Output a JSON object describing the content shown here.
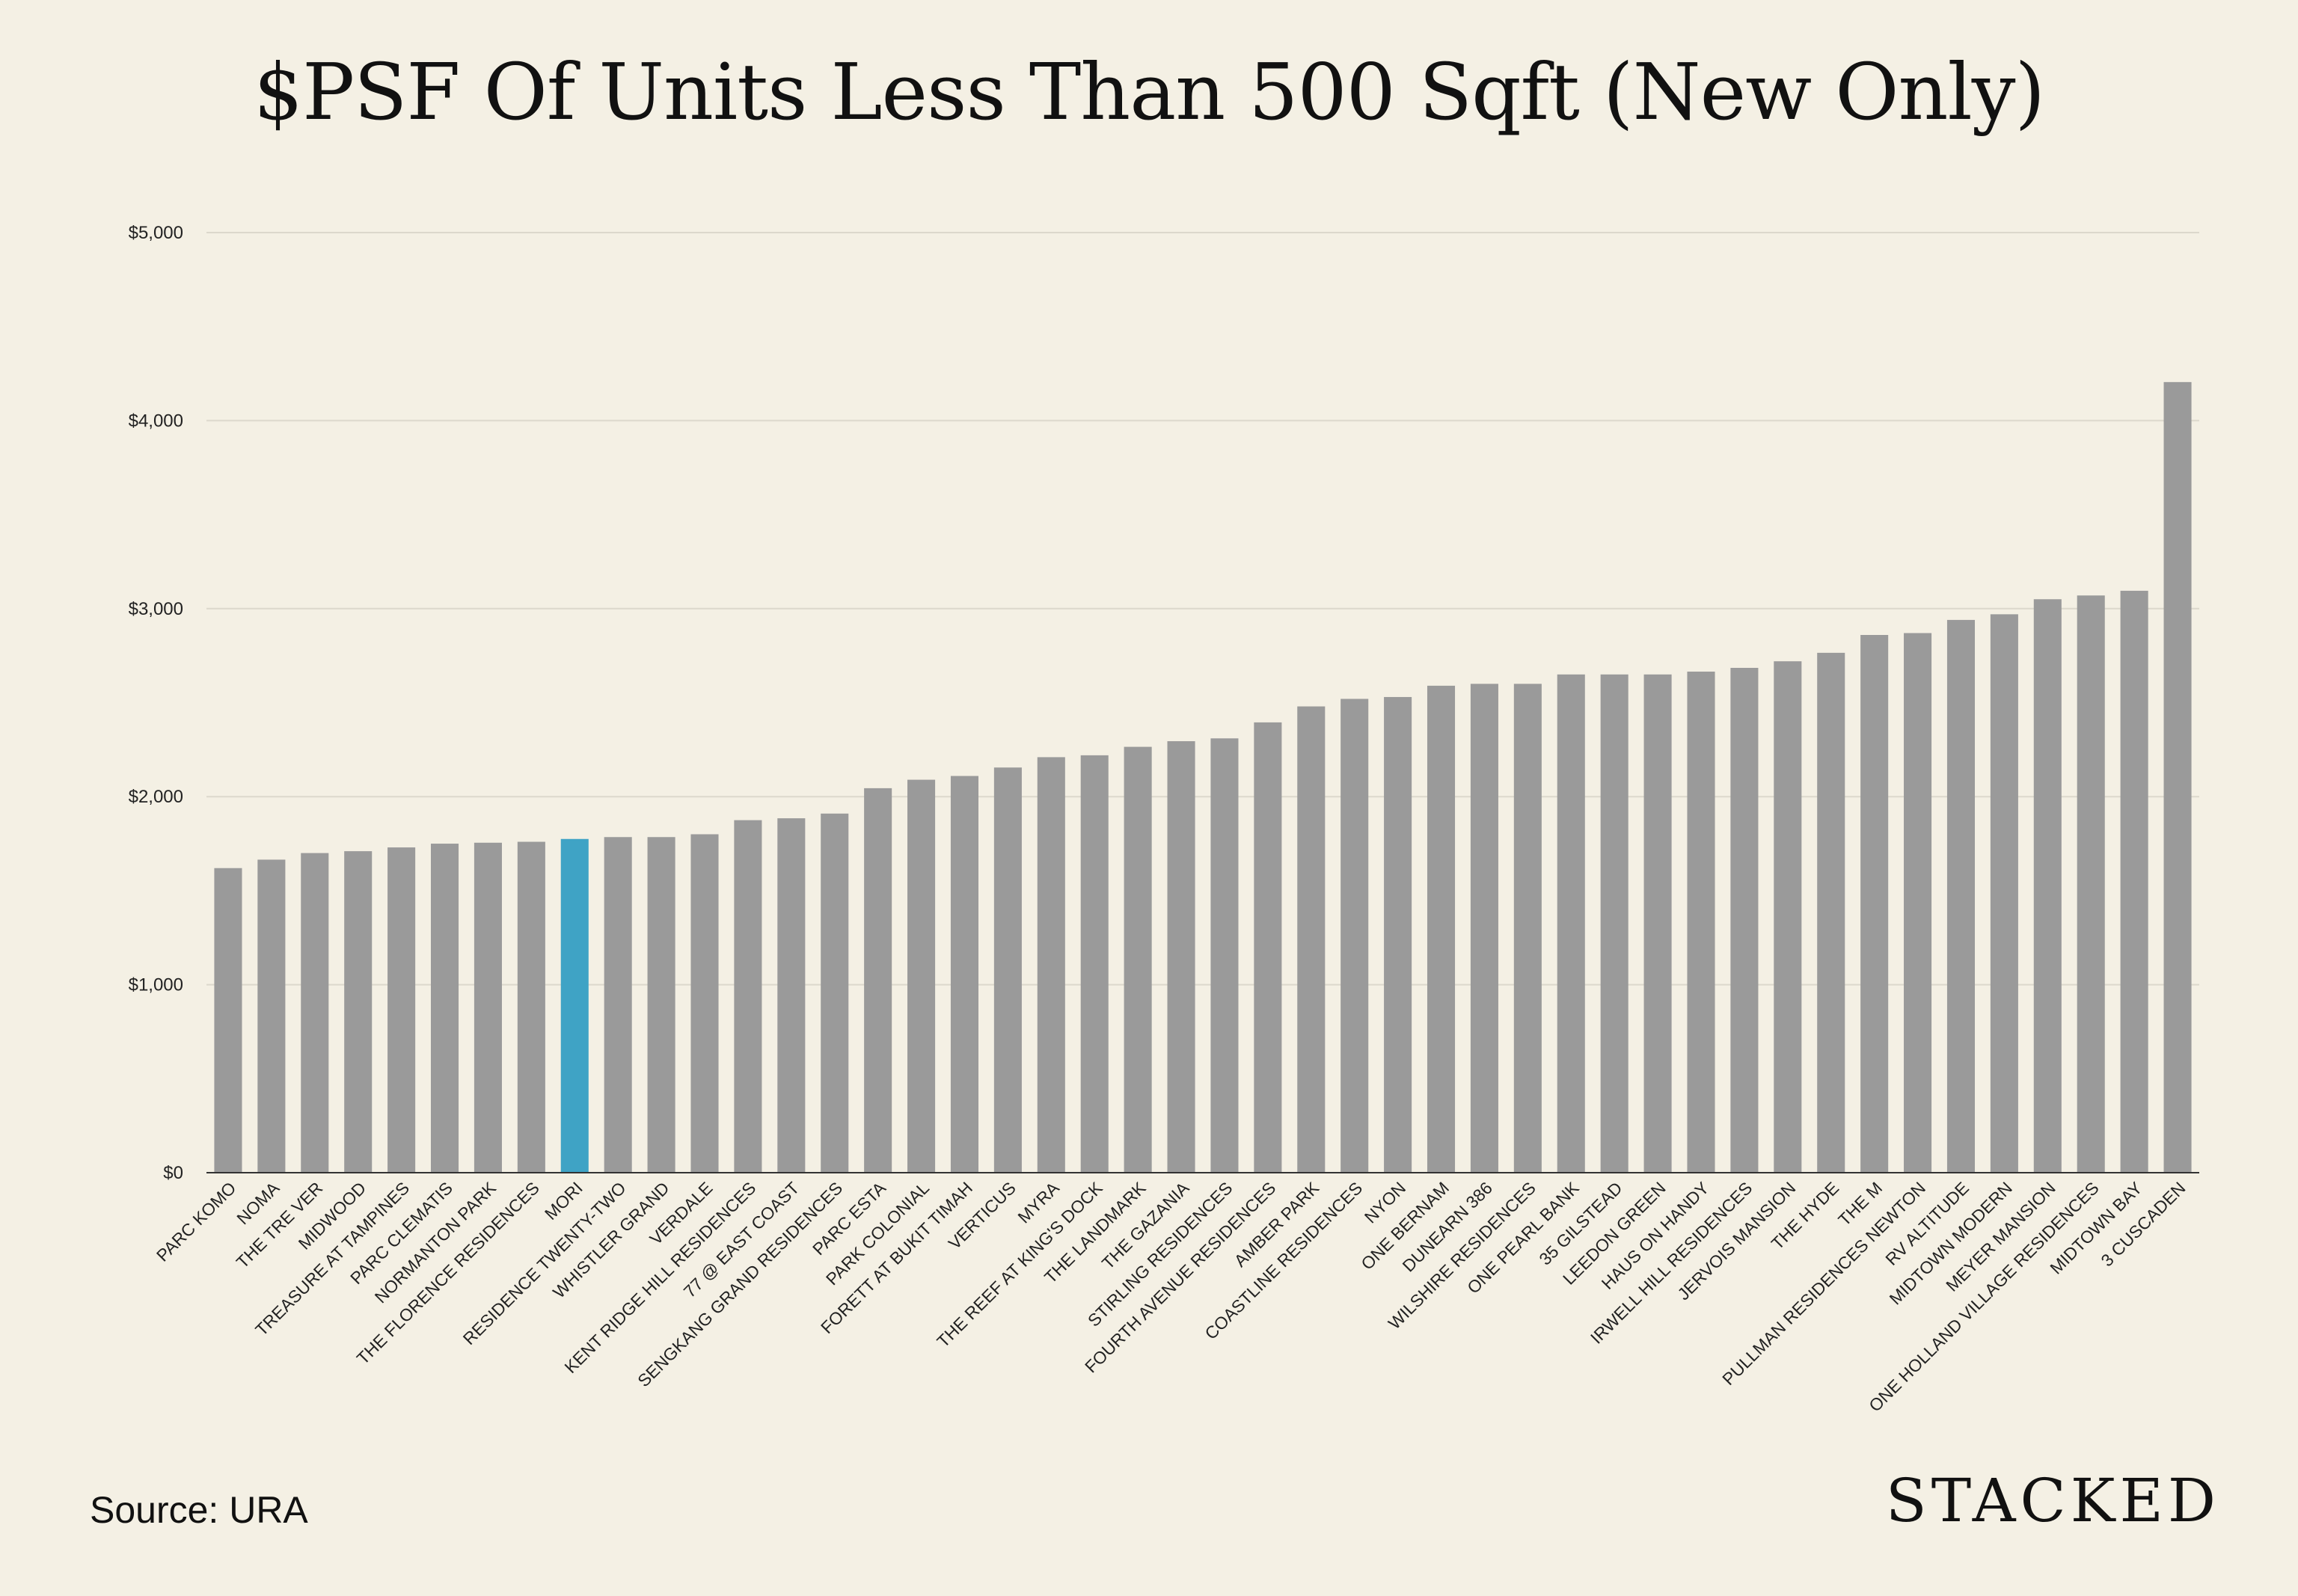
{
  "title": "$PSF Of Units Less Than 500 Sqft (New Only)",
  "source": "Source: URA",
  "brand": "STACKED",
  "colors": {
    "background": "#f4f0e4",
    "bar": "#9a9a9a",
    "highlight": "#3fa3c5",
    "grid": "#dcd8cc"
  },
  "chart_data": {
    "type": "bar",
    "title": "$PSF Of Units Less Than 500 Sqft (New Only)",
    "xlabel": "",
    "ylabel": "",
    "ylim": [
      0,
      5000
    ],
    "yticks": [
      0,
      1000,
      2000,
      3000,
      4000,
      5000
    ],
    "ytick_labels": [
      "$0",
      "$1,000",
      "$2,000",
      "$3,000",
      "$4,000",
      "$5,000"
    ],
    "grid": true,
    "highlight": "MORI",
    "categories": [
      "PARC KOMO",
      "NOMA",
      "THE TRE VER",
      "MIDWOOD",
      "TREASURE AT TAMPINES",
      "PARC CLEMATIS",
      "NORMANTON PARK",
      "THE FLORENCE RESIDENCES",
      "MORI",
      "RESIDENCE TWENTY-TWO",
      "WHISTLER GRAND",
      "VERDALE",
      "KENT RIDGE HILL RESIDENCES",
      "77 @ EAST COAST",
      "SENGKANG GRAND RESIDENCES",
      "PARC ESTA",
      "PARK COLONIAL",
      "FORETT AT BUKIT TIMAH",
      "VERTICUS",
      "MYRA",
      "THE REEF AT KING'S DOCK",
      "THE LANDMARK",
      "THE GAZANIA",
      "STIRLING RESIDENCES",
      "FOURTH AVENUE RESIDENCES",
      "AMBER PARK",
      "COASTLINE RESIDENCES",
      "NYON",
      "ONE BERNAM",
      "DUNEARN 386",
      "WILSHIRE RESIDENCES",
      "ONE PEARL BANK",
      "35 GILSTEAD",
      "LEEDON GREEN",
      "HAUS ON HANDY",
      "IRWELL HILL RESIDENCES",
      "JERVOIS MANSION",
      "THE HYDE",
      "THE M",
      "PULLMAN RESIDENCES NEWTON",
      "RV ALTITUDE",
      "MIDTOWN MODERN",
      "MEYER MANSION",
      "ONE HOLLAND VILLAGE RESIDENCES",
      "MIDTOWN BAY",
      "3 CUSCADEN"
    ],
    "values": [
      1620,
      1665,
      1700,
      1710,
      1730,
      1750,
      1755,
      1760,
      1775,
      1785,
      1785,
      1800,
      1875,
      1885,
      1910,
      2045,
      2090,
      2110,
      2155,
      2210,
      2220,
      2265,
      2295,
      2310,
      2395,
      2480,
      2520,
      2530,
      2590,
      2600,
      2600,
      2650,
      2650,
      2650,
      2665,
      2685,
      2720,
      2765,
      2860,
      2870,
      2940,
      2970,
      3050,
      3070,
      3095,
      4205
    ]
  }
}
